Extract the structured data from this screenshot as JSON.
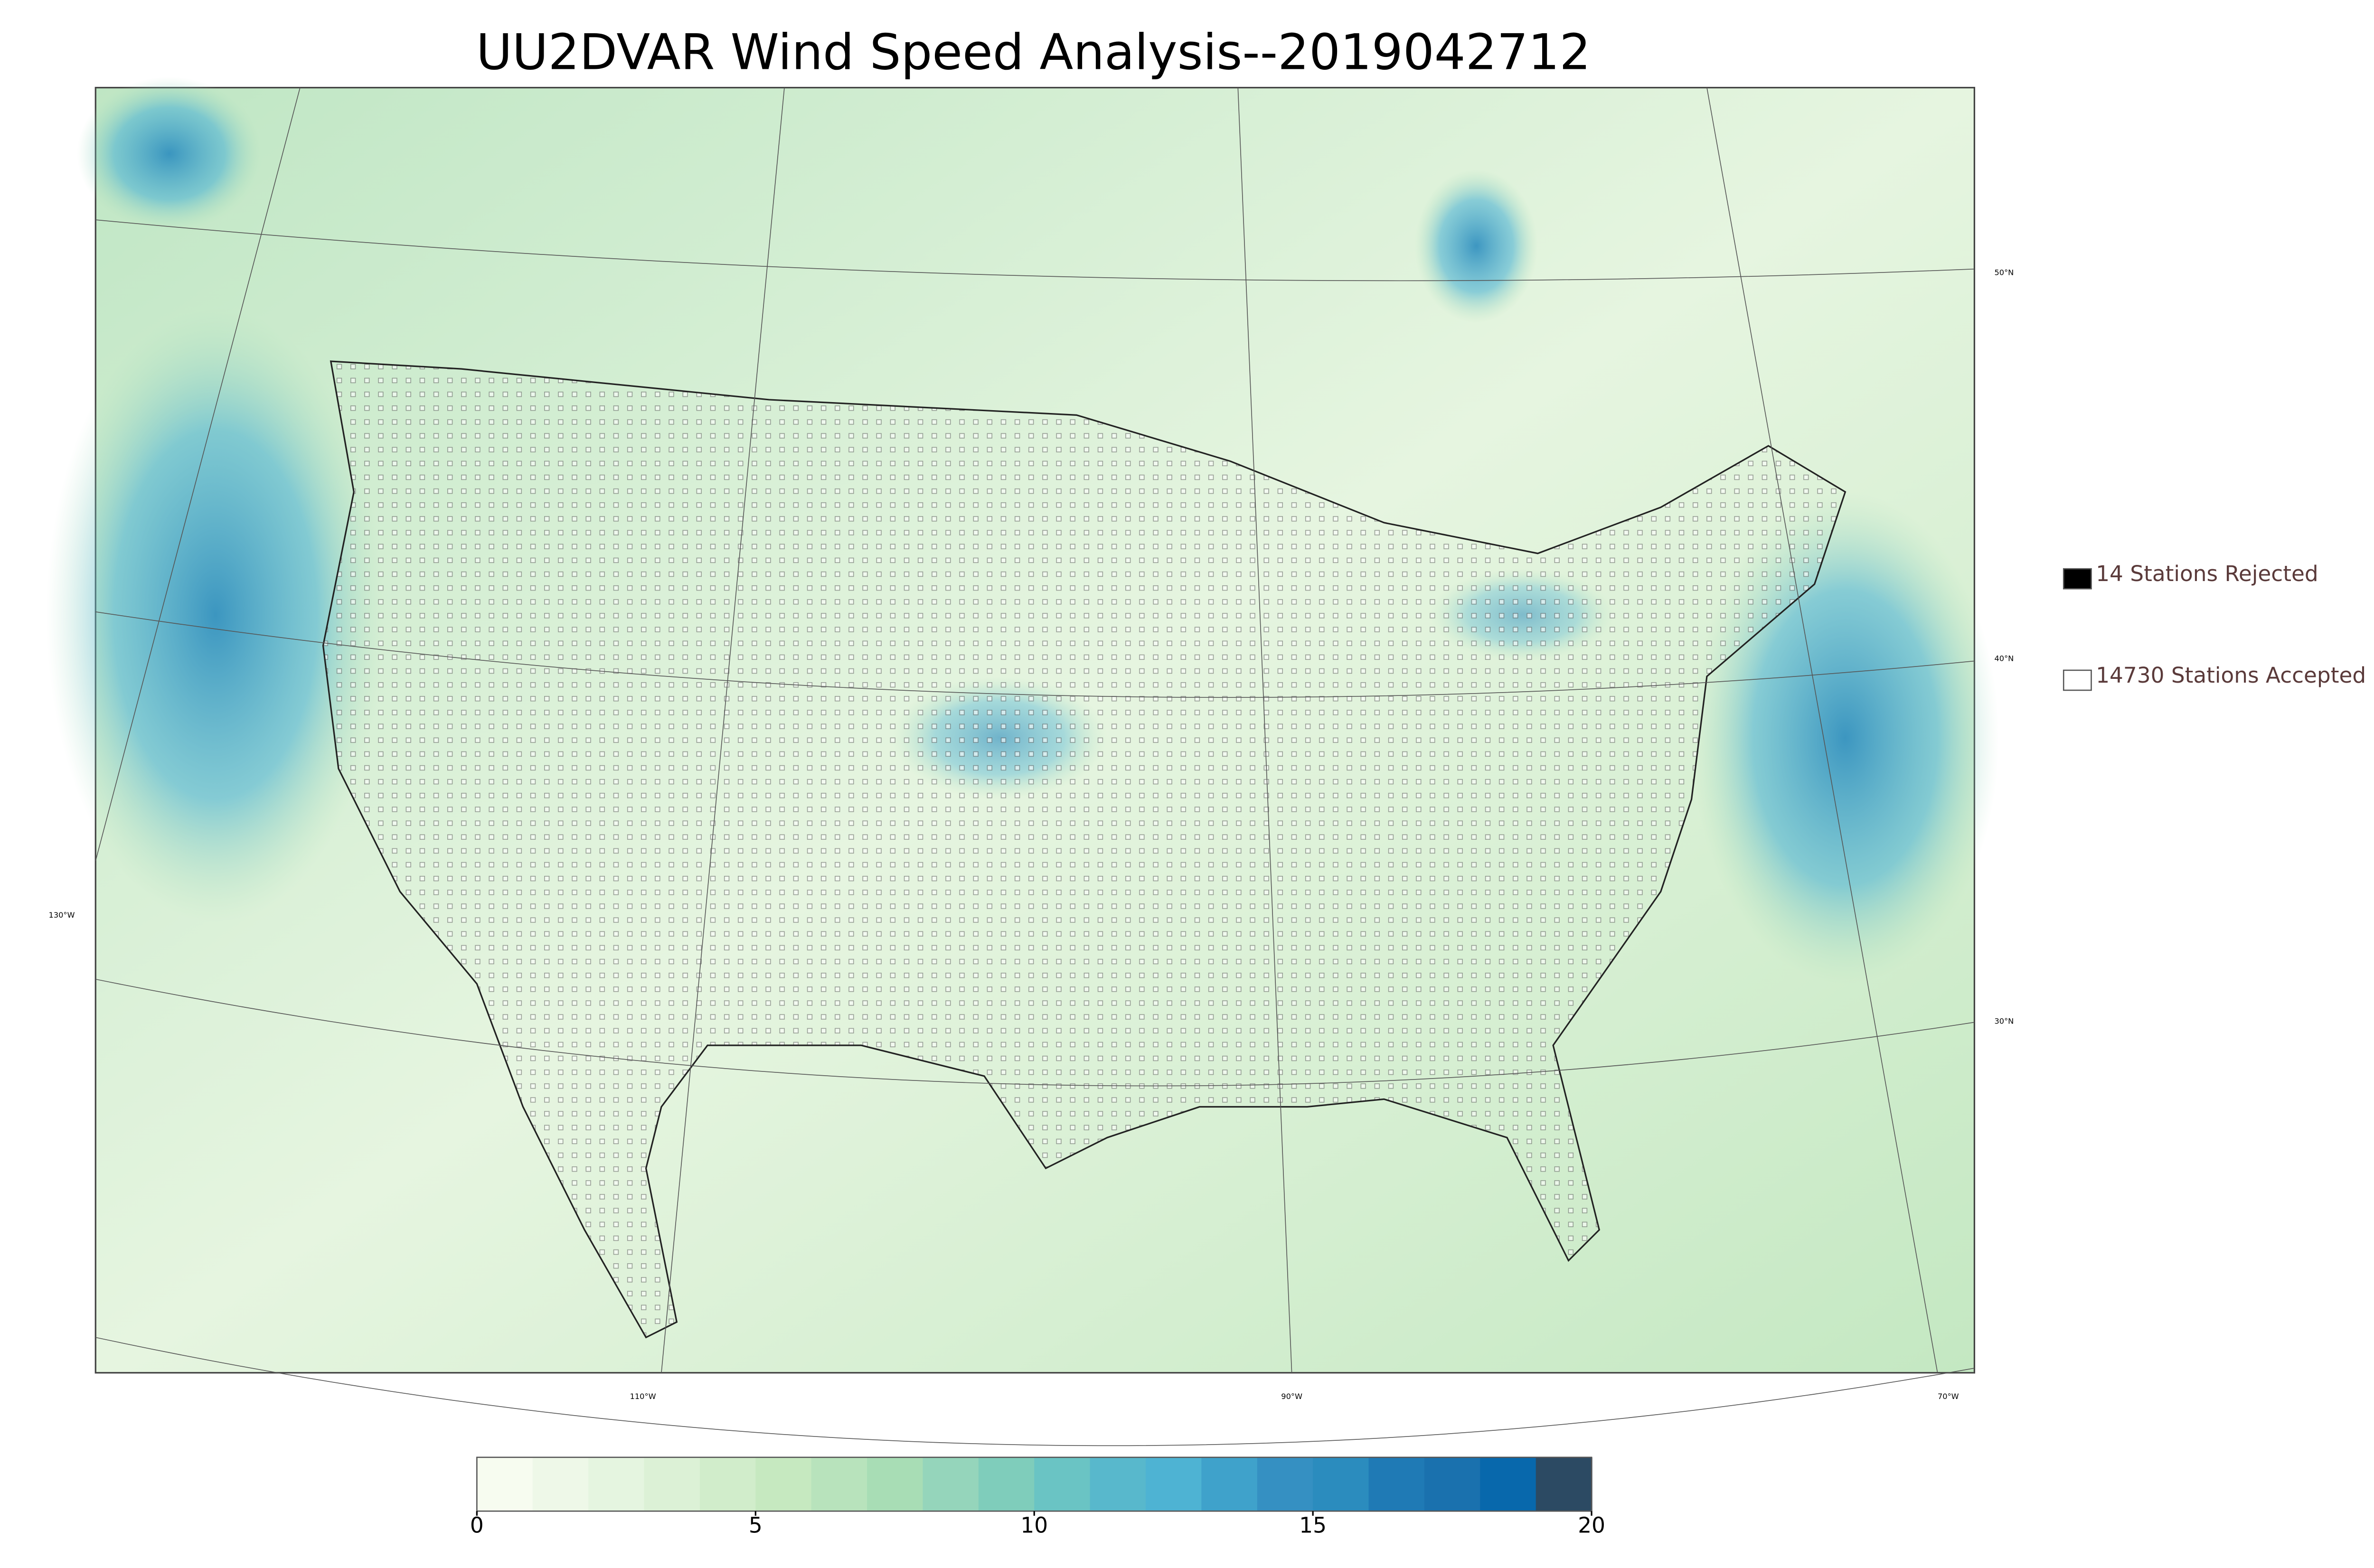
{
  "title": "UU2DVAR Wind Speed Analysis--2019042712",
  "legend": [
    {
      "label": "14 Stations Rejected",
      "color": "#000000"
    },
    {
      "label": "14730 Stations Accepted",
      "color": "#ffffff"
    }
  ],
  "lon_labels": [
    "130°W",
    "110°W",
    "90°W",
    "70°W"
  ],
  "lat_labels": [
    "50°N",
    "40°N",
    "30°N"
  ],
  "colorbar": {
    "lim": [
      0,
      20
    ],
    "ticks": [
      0,
      5,
      10,
      15,
      20
    ],
    "colors": [
      "#f7fcf0",
      "#eef8e8",
      "#e5f5e0",
      "#dcf1d6",
      "#d1edcb",
      "#c6e9c0",
      "#b8e3bc",
      "#a8ddb5",
      "#95d5bb",
      "#7fcdbb",
      "#6ac4c4",
      "#58b8cc",
      "#4eb3d3",
      "#3fa2cb",
      "#3590c2",
      "#2b8cbe",
      "#1f7ab5",
      "#1a71ae",
      "#0868ac",
      "#2c4a63"
    ]
  }
}
